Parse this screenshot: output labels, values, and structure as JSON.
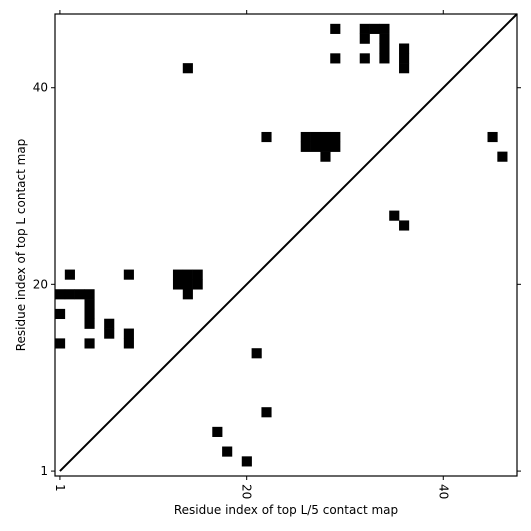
{
  "chart_data": {
    "type": "heatmap",
    "title": "",
    "xlabel": "Residue index of top L/5 contact map",
    "ylabel": "Residue index of top L contact map",
    "xlim": [
      0.5,
      47.5
    ],
    "ylim": [
      0.5,
      47.5
    ],
    "x_ticks": [
      1,
      20,
      40
    ],
    "y_ticks": [
      1,
      20,
      40
    ],
    "x_tick_labels": [
      "1",
      "20",
      "40"
    ],
    "y_tick_labels": [
      "1",
      "20",
      "40"
    ],
    "x_tick_rotation": 90,
    "grid": false,
    "diagonal_line": true,
    "colors": {
      "filled": "#000000",
      "background": "#ffffff"
    },
    "contacts": [
      [
        29,
        46
      ],
      [
        32,
        46
      ],
      [
        33,
        46
      ],
      [
        34,
        46
      ],
      [
        32,
        45
      ],
      [
        34,
        45
      ],
      [
        34,
        44
      ],
      [
        36,
        44
      ],
      [
        29,
        43
      ],
      [
        32,
        43
      ],
      [
        34,
        43
      ],
      [
        36,
        43
      ],
      [
        36,
        42
      ],
      [
        14,
        42
      ],
      [
        22,
        35
      ],
      [
        26,
        35
      ],
      [
        27,
        35
      ],
      [
        28,
        35
      ],
      [
        29,
        35
      ],
      [
        45,
        35
      ],
      [
        26,
        34
      ],
      [
        27,
        34
      ],
      [
        28,
        34
      ],
      [
        29,
        34
      ],
      [
        28,
        33
      ],
      [
        46,
        33
      ],
      [
        35,
        27
      ],
      [
        36,
        26
      ],
      [
        2,
        21
      ],
      [
        8,
        21
      ],
      [
        13,
        21
      ],
      [
        14,
        21
      ],
      [
        15,
        21
      ],
      [
        13,
        20
      ],
      [
        14,
        20
      ],
      [
        15,
        20
      ],
      [
        1,
        19
      ],
      [
        2,
        19
      ],
      [
        3,
        19
      ],
      [
        4,
        19
      ],
      [
        14,
        19
      ],
      [
        4,
        18
      ],
      [
        1,
        17
      ],
      [
        4,
        17
      ],
      [
        4,
        16
      ],
      [
        6,
        16
      ],
      [
        6,
        15
      ],
      [
        8,
        15
      ],
      [
        1,
        14
      ],
      [
        4,
        14
      ],
      [
        8,
        14
      ],
      [
        21,
        13
      ],
      [
        22,
        7
      ],
      [
        17,
        5
      ],
      [
        18,
        3
      ],
      [
        20,
        2
      ]
    ]
  }
}
